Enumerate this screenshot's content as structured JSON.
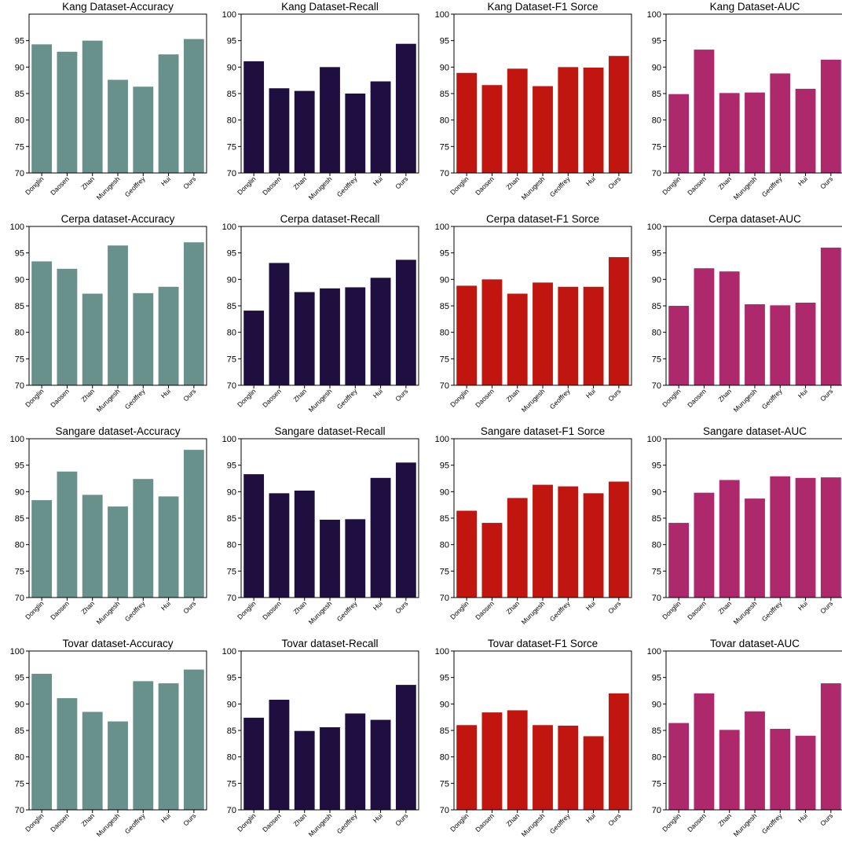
{
  "categories": [
    "Donglin",
    "Daosen",
    "Zhan",
    "Murugesh",
    "Geoffrey",
    "Hui",
    "Ours"
  ],
  "metric_colors": [
    "#67918a",
    "#1e0f40",
    "#c1160f",
    "#ad296c"
  ],
  "chart_data": [
    {
      "type": "bar",
      "title": "Kang Dataset-Accuracy",
      "ylim": [
        70,
        100
      ],
      "yticks": [
        70,
        75,
        80,
        85,
        90,
        95
      ],
      "values": [
        94.3,
        92.9,
        95.0,
        87.6,
        86.3,
        92.4,
        95.3
      ]
    },
    {
      "type": "bar",
      "title": "Kang Dataset-Recall",
      "ylim": [
        70,
        100
      ],
      "yticks": [
        70,
        75,
        80,
        85,
        90,
        95,
        100
      ],
      "values": [
        91.1,
        86.0,
        85.5,
        90.0,
        85.0,
        87.3,
        94.4
      ]
    },
    {
      "type": "bar",
      "title": "Kang Dataset-F1 Sorce",
      "ylim": [
        70,
        100
      ],
      "yticks": [
        70,
        75,
        80,
        85,
        90,
        95,
        100
      ],
      "values": [
        88.9,
        86.6,
        89.7,
        86.4,
        90.0,
        89.9,
        92.1
      ]
    },
    {
      "type": "bar",
      "title": "Kang Dataset-AUC",
      "ylim": [
        70,
        100
      ],
      "yticks": [
        70,
        75,
        80,
        85,
        90,
        95,
        100
      ],
      "values": [
        84.9,
        93.3,
        85.1,
        85.2,
        88.8,
        85.9,
        91.4
      ]
    },
    {
      "type": "bar",
      "title": "Cerpa dataset-Accuracy",
      "ylim": [
        70,
        100
      ],
      "yticks": [
        70,
        75,
        80,
        85,
        90,
        95,
        100
      ],
      "values": [
        93.4,
        92.0,
        87.3,
        96.4,
        87.4,
        88.6,
        97.0
      ]
    },
    {
      "type": "bar",
      "title": "Cerpa dataset-Recall",
      "ylim": [
        70,
        100
      ],
      "yticks": [
        70,
        75,
        80,
        85,
        90,
        95,
        100
      ],
      "values": [
        84.1,
        93.1,
        87.6,
        88.3,
        88.5,
        90.3,
        93.7
      ]
    },
    {
      "type": "bar",
      "title": "Cerpa dataset-F1 Sorce",
      "ylim": [
        70,
        100
      ],
      "yticks": [
        70,
        75,
        80,
        85,
        90,
        95,
        100
      ],
      "values": [
        88.8,
        90.0,
        87.3,
        89.4,
        88.6,
        88.6,
        94.2
      ]
    },
    {
      "type": "bar",
      "title": "Cerpa dataset-AUC",
      "ylim": [
        70,
        100
      ],
      "yticks": [
        70,
        75,
        80,
        85,
        90,
        95,
        100
      ],
      "values": [
        85.0,
        92.1,
        91.5,
        85.3,
        85.1,
        85.6,
        96.0
      ]
    },
    {
      "type": "bar",
      "title": "Sangare dataset-Accuracy",
      "ylim": [
        70,
        100
      ],
      "yticks": [
        70,
        75,
        80,
        85,
        90,
        95,
        100
      ],
      "values": [
        88.4,
        93.8,
        89.4,
        87.2,
        92.4,
        89.1,
        97.9
      ]
    },
    {
      "type": "bar",
      "title": "Sangare dataset-Recall",
      "ylim": [
        70,
        100
      ],
      "yticks": [
        70,
        75,
        80,
        85,
        90,
        95,
        100
      ],
      "values": [
        93.3,
        89.7,
        90.2,
        84.7,
        84.8,
        92.6,
        95.5
      ]
    },
    {
      "type": "bar",
      "title": "Sangare dataset-F1 Sorce",
      "ylim": [
        70,
        100
      ],
      "yticks": [
        70,
        75,
        80,
        85,
        90,
        95,
        100
      ],
      "values": [
        86.4,
        84.1,
        88.8,
        91.3,
        91.0,
        89.7,
        91.9
      ]
    },
    {
      "type": "bar",
      "title": "Sangare dataset-AUC",
      "ylim": [
        70,
        100
      ],
      "yticks": [
        70,
        75,
        80,
        85,
        90,
        95,
        100
      ],
      "values": [
        84.1,
        89.8,
        92.2,
        88.7,
        92.9,
        92.6,
        92.7
      ]
    },
    {
      "type": "bar",
      "title": "Tovar dataset-Accuracy",
      "ylim": [
        70,
        100
      ],
      "yticks": [
        70,
        75,
        80,
        85,
        90,
        95,
        100
      ],
      "values": [
        95.7,
        91.1,
        88.5,
        86.7,
        94.3,
        93.9,
        96.5
      ]
    },
    {
      "type": "bar",
      "title": "Tovar dataset-Recall",
      "ylim": [
        70,
        100
      ],
      "yticks": [
        70,
        75,
        80,
        85,
        90,
        95,
        100
      ],
      "values": [
        87.4,
        90.8,
        84.9,
        85.6,
        88.2,
        87.0,
        93.6
      ]
    },
    {
      "type": "bar",
      "title": "Tovar dataset-F1 Sorce",
      "ylim": [
        70,
        100
      ],
      "yticks": [
        70,
        75,
        80,
        85,
        90,
        95,
        100
      ],
      "values": [
        86.0,
        88.4,
        88.8,
        86.0,
        85.9,
        83.9,
        92.0
      ]
    },
    {
      "type": "bar",
      "title": "Tovar dataset-AUC",
      "ylim": [
        70,
        100
      ],
      "yticks": [
        70,
        75,
        80,
        85,
        90,
        95,
        100
      ],
      "values": [
        86.4,
        92.0,
        85.1,
        88.6,
        85.3,
        84.0,
        93.9
      ]
    }
  ]
}
